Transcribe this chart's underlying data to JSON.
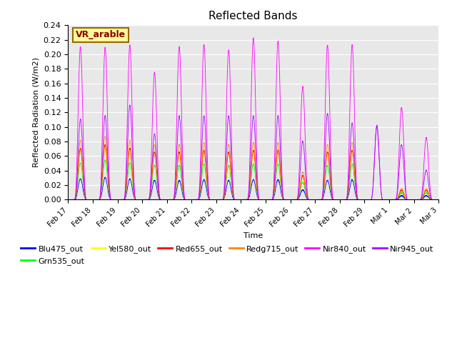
{
  "title": "Reflected Bands",
  "xlabel": "Time",
  "ylabel": "Reflected Radiation (W/m2)",
  "annotation": "VR_arable",
  "ylim": [
    0,
    0.24
  ],
  "yticks": [
    0.0,
    0.02,
    0.04,
    0.06,
    0.08,
    0.1,
    0.12,
    0.14,
    0.16,
    0.18,
    0.2,
    0.22,
    0.24
  ],
  "series": {
    "Blu475_out": {
      "color": "#0000ff"
    },
    "Grn535_out": {
      "color": "#00ff00"
    },
    "Yel580_out": {
      "color": "#ffff00"
    },
    "Red655_out": {
      "color": "#ff0000"
    },
    "Redg715_out": {
      "color": "#ff8800"
    },
    "Nir840_out": {
      "color": "#ff00ff"
    },
    "Nir945_out": {
      "color": "#aa00ff"
    }
  },
  "legend_order": [
    "Blu475_out",
    "Grn535_out",
    "Yel580_out",
    "Red655_out",
    "Redg715_out",
    "Nir840_out",
    "Nir945_out"
  ],
  "bg_color": "#e8e8e8",
  "annotation_bg": "#ffff99",
  "annotation_border": "#996600",
  "day_labels": [
    "Feb 17",
    "Feb 18",
    "Feb 19",
    "Feb 20",
    "Feb 21",
    "Feb 22",
    "Feb 23",
    "Feb 24",
    "Feb 25",
    "Feb 26",
    "Feb 27",
    "Feb 28",
    "Feb 29",
    "Mar 1",
    "Mar 2",
    "Mar 3"
  ],
  "blu_day_peaks": [
    0.028,
    0.03,
    0.028,
    0.026,
    0.026,
    0.027,
    0.026,
    0.027,
    0.027,
    0.013,
    0.026,
    0.027,
    0.0,
    0.005,
    0.005
  ],
  "nir840_day_peaks": [
    0.21,
    0.209,
    0.212,
    0.175,
    0.21,
    0.213,
    0.206,
    0.222,
    0.218,
    0.155,
    0.212,
    0.213,
    0.102,
    0.126,
    0.085
  ],
  "nir945_day_peaks": [
    0.11,
    0.115,
    0.13,
    0.09,
    0.115,
    0.115,
    0.115,
    0.115,
    0.115,
    0.08,
    0.118,
    0.105,
    0.1,
    0.075,
    0.04
  ]
}
